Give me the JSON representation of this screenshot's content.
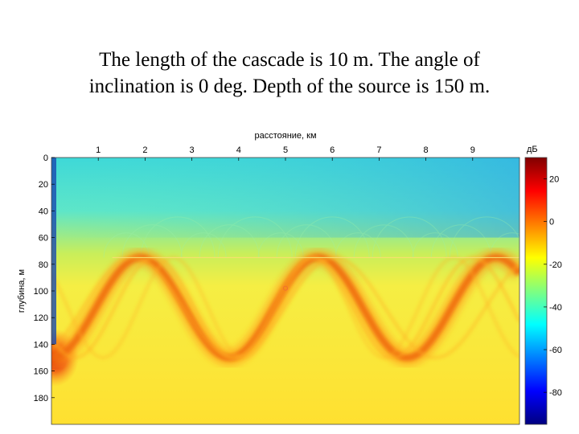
{
  "title": {
    "line1": "The length of the cascade is 10 m. The angle of",
    "line2": "inclination is 0 deg. Depth of the source is 150 m."
  },
  "chart_data": {
    "type": "heatmap",
    "title": "",
    "xlabel": "расстояние, км",
    "ylabel": "глубина, м",
    "x_ticks": [
      1,
      2,
      3,
      4,
      5,
      6,
      7,
      8,
      9
    ],
    "y_ticks": [
      0,
      20,
      40,
      60,
      80,
      100,
      120,
      140,
      160,
      180
    ],
    "xlim": [
      0,
      10
    ],
    "ylim": [
      0,
      200
    ],
    "y_reversed": true,
    "source_depth": 150,
    "interface_depth": 75,
    "cascade_trough_depth": 150,
    "source_marker": {
      "x": 0,
      "y": 150
    },
    "colorbar": {
      "label": "дБ",
      "ticks": [
        20,
        0,
        -20,
        -40,
        -60,
        -80
      ],
      "range": [
        -95,
        30
      ],
      "colormap": "jet"
    }
  }
}
